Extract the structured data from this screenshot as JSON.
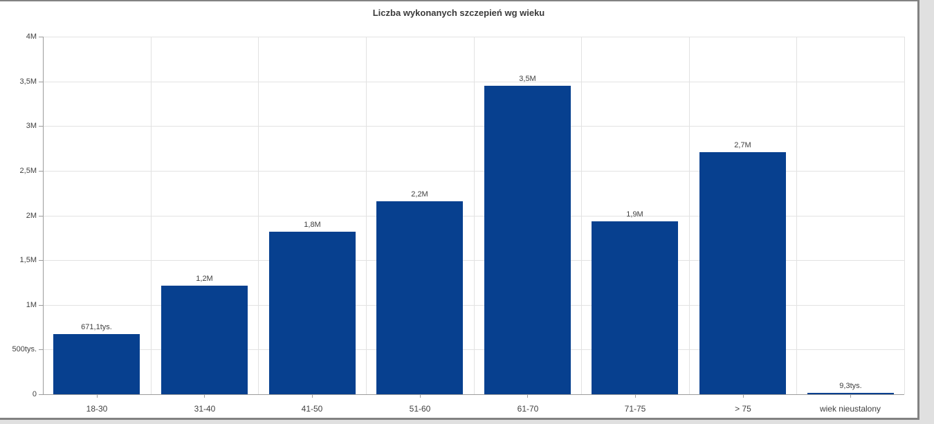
{
  "chart_data": {
    "type": "bar",
    "title": "Liczba wykonanych szczepień wg wieku",
    "categories": [
      "18-30",
      "31-40",
      "41-50",
      "51-60",
      "61-70",
      "71-75",
      "> 75",
      "wiek nieustalony"
    ],
    "values": [
      671100,
      1215000,
      1815000,
      2155000,
      3450000,
      1935000,
      2710000,
      9300
    ],
    "bar_labels": [
      "671,1tys.",
      "1,2M",
      "1,8M",
      "2,2M",
      "3,5M",
      "1,9M",
      "2,7M",
      "9,3tys."
    ],
    "y_ticks": [
      {
        "value": 0,
        "label": "0"
      },
      {
        "value": 500000,
        "label": "500tys."
      },
      {
        "value": 1000000,
        "label": "1M"
      },
      {
        "value": 1500000,
        "label": "1,5M"
      },
      {
        "value": 2000000,
        "label": "2M"
      },
      {
        "value": 2500000,
        "label": "2,5M"
      },
      {
        "value": 3000000,
        "label": "3M"
      },
      {
        "value": 3500000,
        "label": "3,5M"
      },
      {
        "value": 4000000,
        "label": "4M"
      }
    ],
    "ylim": [
      0,
      4000000
    ],
    "xlabel": "",
    "ylabel": "",
    "grid": true,
    "legend": "none",
    "colors": {
      "bar": "#07408f",
      "gridline": "#e2e2e2",
      "axis": "#9b9b9b",
      "tick_text": "#404040",
      "title_text": "#3a3a3a",
      "frame_border": "#828282",
      "gutter": "#e0e0e0",
      "background": "#ffffff"
    }
  }
}
